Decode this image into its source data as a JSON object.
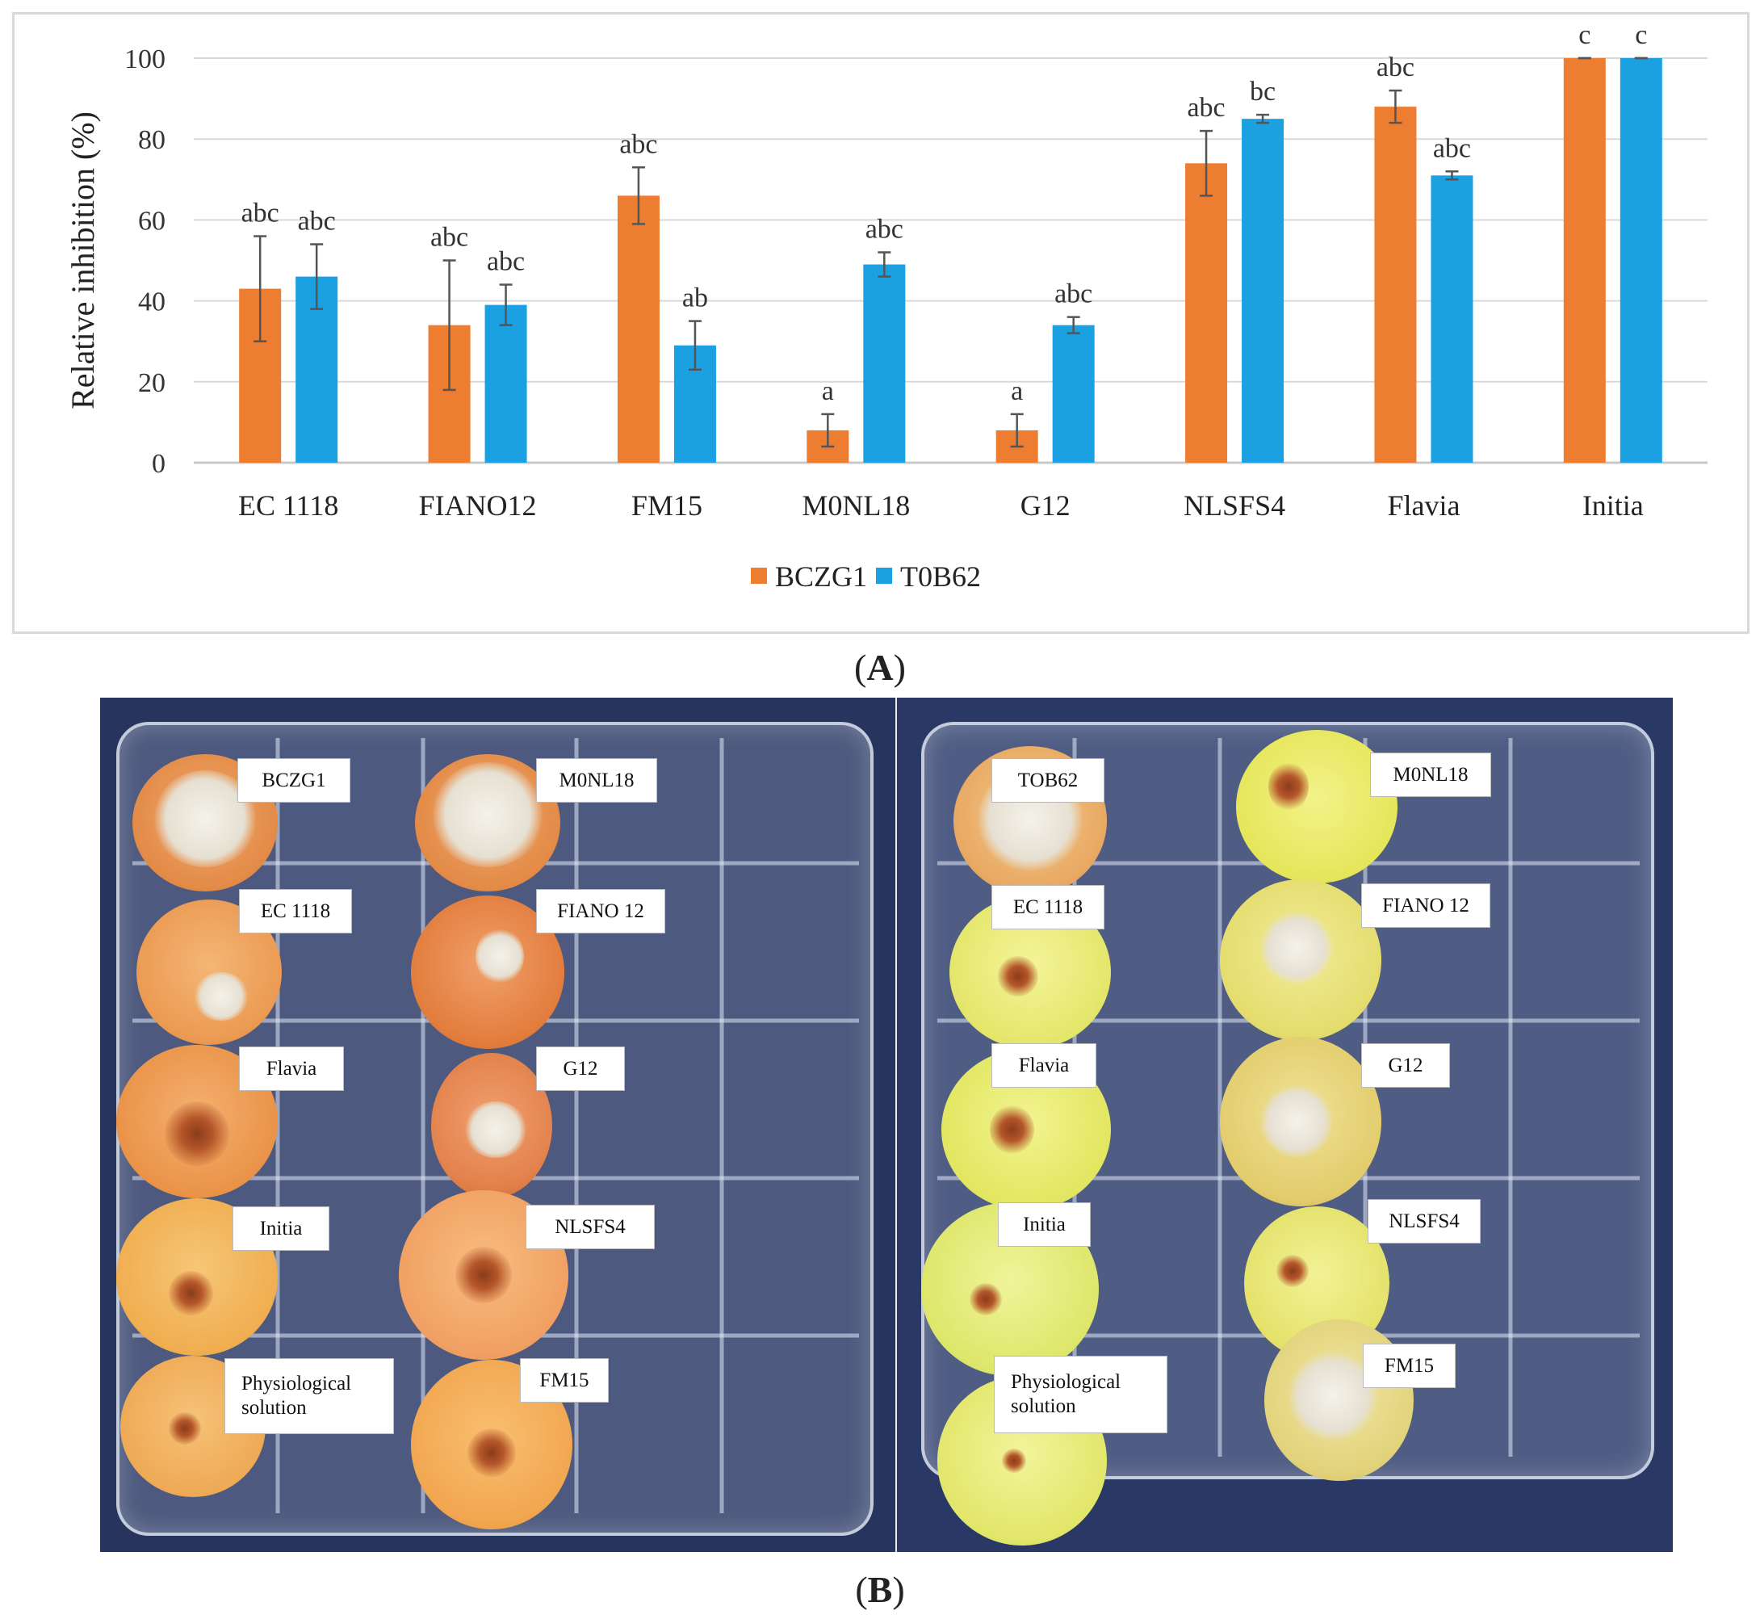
{
  "panel_labels": {
    "a": "A",
    "b": "B"
  },
  "chart_data": {
    "type": "bar",
    "title": "",
    "xlabel": "",
    "ylabel": "Relative inhibition (%)",
    "ylim": [
      0,
      100
    ],
    "yticks": [
      0,
      20,
      40,
      60,
      80,
      100
    ],
    "grid": "horizontal",
    "legend_position": "bottom",
    "categories": [
      "EC 1118",
      "FIANO12",
      "FM15",
      "M0NL18",
      "G12",
      "NLSFS4",
      "Flavia",
      "Initia"
    ],
    "series": [
      {
        "name": "BCZG1",
        "color": "#ed7d31",
        "values": [
          43,
          34,
          66,
          8,
          8,
          74,
          88,
          100
        ],
        "errors": [
          13,
          16,
          7,
          4,
          4,
          8,
          4,
          0
        ],
        "letters": [
          "abc",
          "abc",
          "abc",
          "a",
          "a",
          "abc",
          "abc",
          "c"
        ]
      },
      {
        "name": "T0B62",
        "color": "#1ba1e2",
        "values": [
          46,
          39,
          29,
          49,
          34,
          85,
          71,
          100
        ],
        "errors": [
          8,
          5,
          6,
          3,
          2,
          1,
          1,
          0
        ],
        "letters": [
          "abc",
          "abc",
          "ab",
          "abc",
          "abc",
          "bc",
          "abc",
          "c"
        ]
      }
    ]
  },
  "photos": {
    "left": {
      "labels": [
        "BCZG1",
        "M0NL18",
        "EC 1118",
        "FIANO 12",
        "Flavia",
        "G12",
        "Initia",
        "NLSFS4",
        "Physiological solution",
        "FM15"
      ]
    },
    "right": {
      "labels": [
        "TOB62",
        "M0NL18",
        "EC 1118",
        "FIANO 12",
        "Flavia",
        "G12",
        "Initia",
        "NLSFS4",
        "Physiological solution",
        "FM15"
      ]
    }
  }
}
